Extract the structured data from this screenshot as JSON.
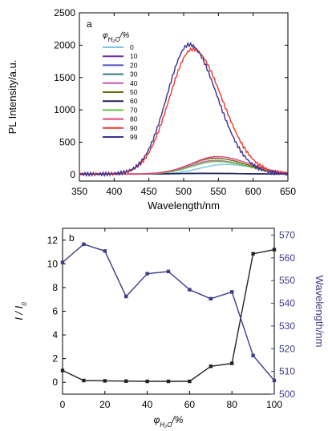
{
  "chart_data": [
    {
      "type": "line",
      "panel_label": "a",
      "xlabel": "Wavelength/nm",
      "ylabel": "PL Intensity/a.u.",
      "xlim": [
        350,
        650
      ],
      "ylim": [
        -100,
        2500
      ],
      "x_ticks": [
        350,
        400,
        450,
        500,
        550,
        600,
        650
      ],
      "y_ticks": [
        0,
        500,
        1000,
        1500,
        2000,
        2500
      ],
      "legend": {
        "title_prefix": "φ",
        "title_subscript": "H₂O",
        "title_suffix": "/%",
        "placement": "top-left"
      },
      "series": [
        {
          "name": "0",
          "color": "#79c7e3",
          "peak_x": 560,
          "peak_y": 150,
          "width": 45
        },
        {
          "name": "10",
          "color": "#6b2fa3",
          "peak_x": 530,
          "peak_y": 12,
          "width": 50
        },
        {
          "name": "20",
          "color": "#4d4fc9",
          "peak_x": 530,
          "peak_y": 10,
          "width": 50
        },
        {
          "name": "30",
          "color": "#2a7a7f",
          "peak_x": 530,
          "peak_y": 8,
          "width": 50
        },
        {
          "name": "40",
          "color": "#c75aa8",
          "peak_x": 545,
          "peak_y": 210,
          "width": 45
        },
        {
          "name": "50",
          "color": "#6b6b10",
          "peak_x": 545,
          "peak_y": 245,
          "width": 45
        },
        {
          "name": "60",
          "color": "#1f1f5a",
          "peak_x": 530,
          "peak_y": 12,
          "width": 50
        },
        {
          "name": "70",
          "color": "#5ec447",
          "peak_x": 548,
          "peak_y": 195,
          "width": 45
        },
        {
          "name": "80",
          "color": "#e0457e",
          "peak_x": 548,
          "peak_y": 270,
          "width": 45
        },
        {
          "name": "90",
          "color": "#e8392e",
          "peak_x": 513,
          "peak_y": 1930,
          "width": 42
        },
        {
          "name": "99",
          "color": "#3b2e8c",
          "peak_x": 508,
          "peak_y": 2000,
          "width": 40
        }
      ]
    },
    {
      "type": "line",
      "panel_label": "b",
      "xlabel_prefix": "φ",
      "xlabel_subscript": "H₂O",
      "xlabel_suffix": "/%",
      "ylabel_left": "I / I",
      "ylabel_left_subscript": "0",
      "ylabel_right": "Wavelength/nm",
      "xlim": [
        0,
        100
      ],
      "ylim_left": [
        -1,
        13
      ],
      "ylim_right": [
        500,
        573
      ],
      "x_ticks": [
        0,
        20,
        40,
        60,
        80,
        100
      ],
      "y_ticks_left": [
        0,
        2,
        4,
        6,
        8,
        10,
        12
      ],
      "y_ticks_right": [
        500,
        510,
        520,
        530,
        540,
        550,
        560,
        570
      ],
      "x": [
        0,
        10,
        20,
        30,
        40,
        50,
        60,
        70,
        80,
        90,
        100
      ],
      "series": [
        {
          "axis": "left",
          "color": "#222222",
          "values": [
            1.0,
            0.15,
            0.12,
            0.1,
            0.08,
            0.08,
            0.08,
            1.35,
            1.6,
            10.85,
            11.2
          ]
        },
        {
          "axis": "right",
          "color": "#3b3b8c",
          "values": [
            558,
            566,
            563,
            543,
            553,
            554,
            546,
            542,
            545,
            517,
            506
          ]
        }
      ]
    }
  ]
}
